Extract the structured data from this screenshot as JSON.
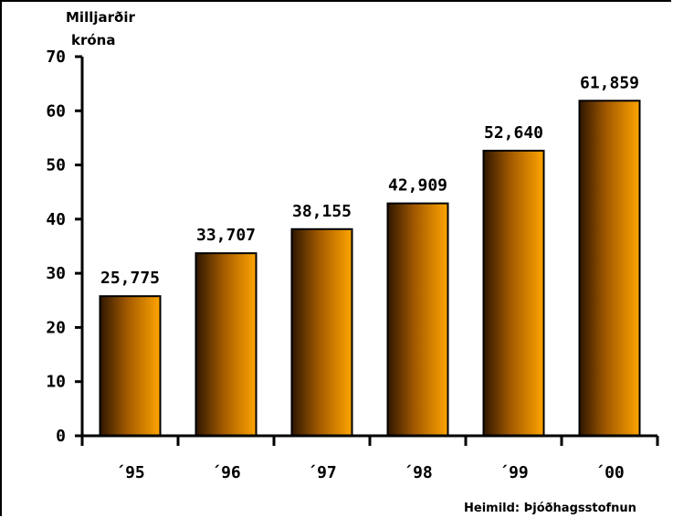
{
  "chart_data": {
    "type": "bar",
    "ylabel_lines": [
      "Milljarðir",
      "króna"
    ],
    "categories": [
      "´95",
      "´96",
      "´97",
      "´98",
      "´99",
      "´00"
    ],
    "values": [
      25.775,
      33.707,
      38.155,
      42.909,
      52.64,
      61.859
    ],
    "value_labels": [
      "25,775",
      "33,707",
      "38,155",
      "42,909",
      "52,640",
      "61,859"
    ],
    "ylim": [
      0,
      70
    ],
    "yticks": [
      0,
      10,
      20,
      30,
      40,
      50,
      60,
      70
    ],
    "grid": false,
    "source": "Heimild: Þjóðhagsstofnun",
    "colors": {
      "bar_light": "#ffa500",
      "bar_dark": "#2e1600",
      "axis": "#000000"
    }
  }
}
